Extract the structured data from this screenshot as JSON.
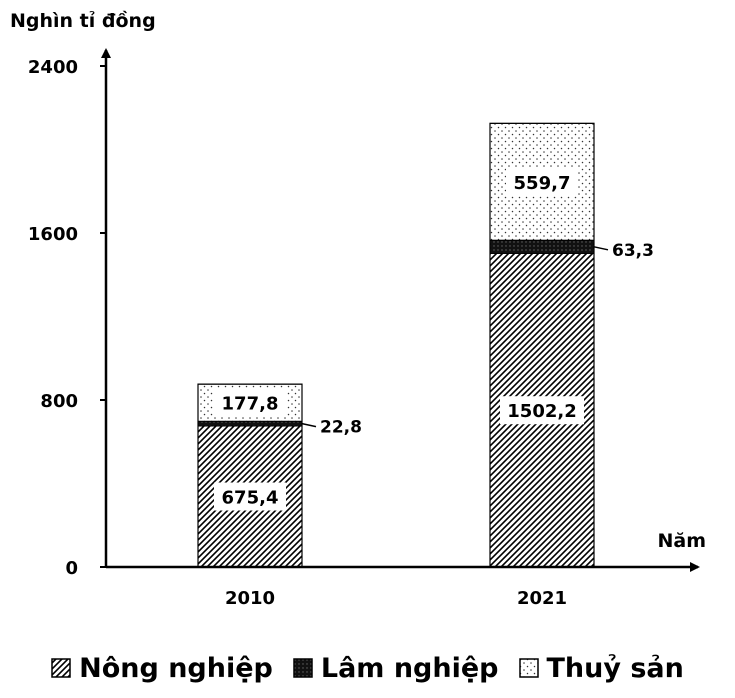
{
  "chart_data": {
    "type": "bar",
    "stacked": true,
    "ylabel": "Nghìn tỉ đồng",
    "xlabel": "Năm",
    "categories": [
      "2010",
      "2021"
    ],
    "ylim": [
      0,
      2400
    ],
    "yticks": [
      0,
      800,
      1600,
      2400
    ],
    "grid": false,
    "legend_position": "bottom",
    "series": [
      {
        "name": "Nông nghiệp",
        "values": [
          675.4,
          1502.2
        ],
        "labels": [
          "675,4",
          "1502,2"
        ],
        "pattern": "diagonal-hatch"
      },
      {
        "name": "Lâm nghiệp",
        "values": [
          22.8,
          63.3
        ],
        "labels": [
          "22,8",
          "63,3"
        ],
        "pattern": "dense-black"
      },
      {
        "name": "Thuỷ sản",
        "values": [
          177.8,
          559.7
        ],
        "labels": [
          "177,8",
          "559,7"
        ],
        "pattern": "dots"
      }
    ]
  },
  "legend": {
    "items": [
      "Nông nghiệp",
      "Lâm nghiệp",
      "Thuỷ sản"
    ]
  }
}
